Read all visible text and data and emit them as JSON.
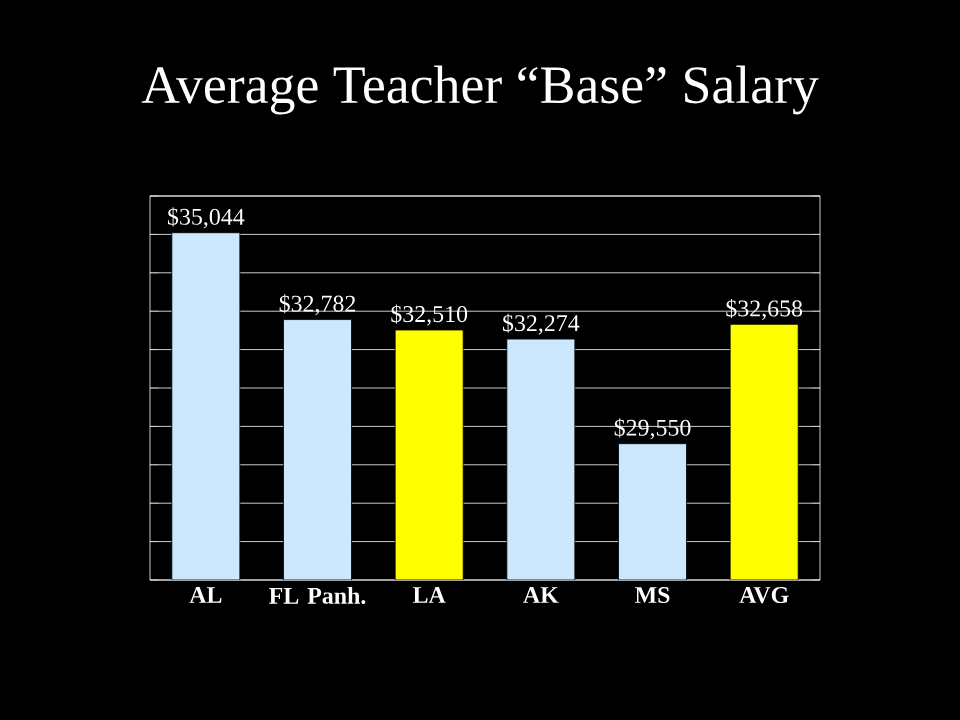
{
  "chart_data": {
    "type": "bar",
    "title": "Average Teacher “Base” Salary",
    "categories": [
      "AL",
      "FL Panh.",
      "LA",
      "AK",
      "MS",
      "AVG"
    ],
    "values": [
      35044,
      32782,
      32510,
      32274,
      29550,
      32658
    ],
    "value_labels": [
      "$35,044",
      "$32,782",
      "$32,510",
      "$32,274",
      "$29,550",
      "$32,658"
    ],
    "colors": [
      "#cce8ff",
      "#cce8ff",
      "#ffff00",
      "#cce8ff",
      "#cce8ff",
      "#ffff00"
    ],
    "ylim": [
      26000,
      36000
    ],
    "yticks": [
      {
        "value": 26000,
        "label": null
      },
      {
        "value": 27000,
        "label": null
      },
      {
        "value": 28000,
        "label": null
      },
      {
        "value": 29000,
        "label": null
      },
      {
        "value": 30000,
        "label": null
      },
      {
        "value": 31000,
        "label": null
      },
      {
        "value": 32000,
        "label": null
      },
      {
        "value": 33000,
        "label": null
      },
      {
        "value": 34000,
        "label": null
      },
      {
        "value": 35000,
        "label": null
      },
      {
        "value": 36000,
        "label": null
      }
    ],
    "grid": "y",
    "tick_labels": "x"
  }
}
